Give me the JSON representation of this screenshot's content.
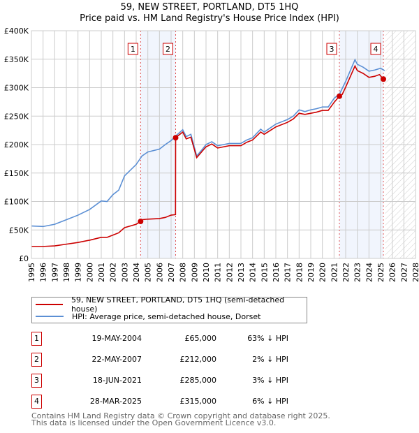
{
  "chart_data": {
    "type": "line",
    "title": "59, NEW STREET, PORTLAND, DT5 1HQ",
    "subtitle": "Price paid vs. HM Land Registry's House Price Index (HPI)",
    "xlim": [
      1995,
      2028
    ],
    "ylim": [
      0,
      400000
    ],
    "y_ticks": [
      "£0",
      "£50K",
      "£100K",
      "£150K",
      "£200K",
      "£250K",
      "£300K",
      "£350K",
      "£400K"
    ],
    "x_ticks": [
      "1995",
      "1996",
      "1997",
      "1998",
      "1999",
      "2000",
      "2001",
      "2002",
      "2003",
      "2004",
      "2005",
      "2006",
      "2007",
      "2008",
      "2009",
      "2010",
      "2011",
      "2012",
      "2013",
      "2014",
      "2015",
      "2016",
      "2017",
      "2018",
      "2019",
      "2020",
      "2021",
      "2022",
      "2023",
      "2024",
      "2025",
      "2026",
      "2027",
      "2028"
    ],
    "grid": true,
    "series": [
      {
        "name": "59, NEW STREET, PORTLAND, DT5 1HQ (semi-detached house)",
        "color": "#cc0000",
        "points": [
          [
            1995,
            21
          ],
          [
            1996,
            21
          ],
          [
            1997,
            22
          ],
          [
            1998,
            25
          ],
          [
            1999,
            28
          ],
          [
            2000,
            32
          ],
          [
            2001,
            37
          ],
          [
            2001.5,
            37
          ],
          [
            2002,
            41
          ],
          [
            2002.5,
            45
          ],
          [
            2003,
            54
          ],
          [
            2004,
            60
          ],
          [
            2004.38,
            65
          ],
          [
            2004.5,
            68
          ],
          [
            2005,
            69
          ],
          [
            2006,
            70
          ],
          [
            2006.5,
            72
          ],
          [
            2007,
            76
          ],
          [
            2007.38,
            77
          ],
          [
            2007.39,
            212
          ],
          [
            2007.5,
            214
          ],
          [
            2008,
            222
          ],
          [
            2008.3,
            210
          ],
          [
            2008.7,
            213
          ],
          [
            2009.2,
            177
          ],
          [
            2009.7,
            189
          ],
          [
            2010,
            196
          ],
          [
            2010.5,
            201
          ],
          [
            2011,
            194
          ],
          [
            2012,
            198
          ],
          [
            2013,
            198
          ],
          [
            2013.5,
            204
          ],
          [
            2014,
            208
          ],
          [
            2014.7,
            222
          ],
          [
            2015,
            218
          ],
          [
            2016,
            231
          ],
          [
            2017,
            239
          ],
          [
            2017.5,
            245
          ],
          [
            2018,
            255
          ],
          [
            2018.5,
            253
          ],
          [
            2019,
            255
          ],
          [
            2019.5,
            257
          ],
          [
            2020,
            260
          ],
          [
            2020.5,
            260
          ],
          [
            2021,
            274
          ],
          [
            2021.46,
            285
          ],
          [
            2021.7,
            288
          ],
          [
            2022,
            301
          ],
          [
            2022.8,
            338
          ],
          [
            2023,
            330
          ],
          [
            2023.5,
            325
          ],
          [
            2024,
            318
          ],
          [
            2024.5,
            320
          ],
          [
            2024.9,
            323
          ],
          [
            2025.24,
            315
          ],
          [
            2025.35,
            313
          ]
        ]
      },
      {
        "name": "HPI: Average price, semi-detached house, Dorset",
        "color": "#5b8fd4",
        "points": [
          [
            1995,
            57
          ],
          [
            1996,
            56
          ],
          [
            1997,
            60
          ],
          [
            1998,
            68
          ],
          [
            1999,
            76
          ],
          [
            2000,
            86
          ],
          [
            2001,
            101
          ],
          [
            2001.5,
            100
          ],
          [
            2002,
            112
          ],
          [
            2002.5,
            120
          ],
          [
            2003,
            145
          ],
          [
            2004,
            165
          ],
          [
            2004.5,
            180
          ],
          [
            2005,
            187
          ],
          [
            2006,
            192
          ],
          [
            2006.5,
            200
          ],
          [
            2007,
            207
          ],
          [
            2007.5,
            217
          ],
          [
            2008,
            226
          ],
          [
            2008.3,
            214
          ],
          [
            2008.7,
            218
          ],
          [
            2009.2,
            180
          ],
          [
            2009.7,
            192
          ],
          [
            2010,
            200
          ],
          [
            2010.5,
            205
          ],
          [
            2011,
            198
          ],
          [
            2012,
            202
          ],
          [
            2013,
            202
          ],
          [
            2013.5,
            208
          ],
          [
            2014,
            212
          ],
          [
            2014.7,
            227
          ],
          [
            2015,
            222
          ],
          [
            2016,
            236
          ],
          [
            2017,
            244
          ],
          [
            2017.5,
            250
          ],
          [
            2018,
            261
          ],
          [
            2018.5,
            258
          ],
          [
            2019,
            261
          ],
          [
            2019.5,
            263
          ],
          [
            2020,
            266
          ],
          [
            2020.5,
            266
          ],
          [
            2021,
            281
          ],
          [
            2021.5,
            290
          ],
          [
            2022,
            311
          ],
          [
            2022.8,
            349
          ],
          [
            2023,
            341
          ],
          [
            2023.5,
            336
          ],
          [
            2024,
            329
          ],
          [
            2024.5,
            331
          ],
          [
            2025,
            334
          ],
          [
            2025.35,
            330
          ]
        ]
      }
    ],
    "units": "thousands GBP",
    "sales": [
      {
        "label": "1",
        "x": 2004.38,
        "y": 65
      },
      {
        "label": "2",
        "x": 2007.39,
        "y": 212
      },
      {
        "label": "3",
        "x": 2021.46,
        "y": 285
      },
      {
        "label": "4",
        "x": 2025.24,
        "y": 315
      }
    ],
    "shaded_ranges": [
      [
        2004.38,
        2007.39
      ],
      [
        2021.46,
        2025.24
      ]
    ],
    "forecast_hatch_from": 2025.4
  },
  "table": [
    {
      "num": "1",
      "date": "19-MAY-2004",
      "price": "£65,000",
      "hpi": "63% ↓ HPI"
    },
    {
      "num": "2",
      "date": "22-MAY-2007",
      "price": "£212,000",
      "hpi": "2% ↓ HPI"
    },
    {
      "num": "3",
      "date": "18-JUN-2021",
      "price": "£285,000",
      "hpi": "3% ↓ HPI"
    },
    {
      "num": "4",
      "date": "28-MAR-2025",
      "price": "£315,000",
      "hpi": "6% ↓ HPI"
    }
  ],
  "footer": [
    "Contains HM Land Registry data © Crown copyright and database right 2025.",
    "This data is licensed under the Open Government Licence v3.0."
  ]
}
